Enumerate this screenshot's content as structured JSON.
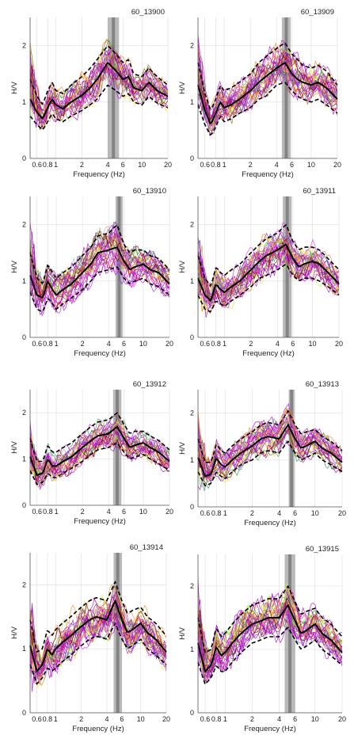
{
  "chart_data": [
    {
      "type": "line",
      "title": "60_13900",
      "xlabel": "Frequency (Hz)",
      "ylabel": "H/V",
      "x_scale": "log",
      "xlim": [
        0.5,
        20
      ],
      "ylim": [
        0,
        2.5
      ],
      "xticks": [
        "0.6",
        "0.8",
        "1",
        "2",
        "4",
        "6",
        "10",
        "20"
      ],
      "xtick_values": [
        0.6,
        0.8,
        1,
        2,
        4,
        6,
        10,
        20
      ],
      "yticks": [
        "0",
        "1",
        "2"
      ],
      "ytick_values": [
        0,
        1,
        2
      ],
      "peak_band_hz": [
        4.0,
        5.4
      ],
      "x": [
        0.5,
        0.6,
        0.7,
        0.8,
        0.9,
        1.0,
        1.2,
        1.5,
        2.0,
        2.5,
        3.0,
        4.0,
        5.0,
        6.0,
        7.0,
        8.0,
        10.0,
        12.0,
        15.0,
        20.0
      ],
      "series": [
        {
          "values": [
            1.05,
            0.82,
            0.7,
            0.9,
            1.05,
            0.95,
            0.88,
            1.0,
            1.12,
            1.25,
            1.4,
            1.7,
            1.55,
            1.4,
            1.45,
            1.25,
            1.2,
            1.35,
            1.2,
            1.1
          ]
        },
        {
          "values": [
            1.4,
            1.1,
            0.95,
            1.2,
            1.35,
            1.2,
            1.15,
            1.3,
            1.45,
            1.6,
            1.75,
            2.0,
            1.85,
            1.7,
            1.75,
            1.5,
            1.45,
            1.6,
            1.45,
            1.3
          ]
        },
        {
          "values": [
            0.75,
            0.6,
            0.5,
            0.65,
            0.8,
            0.7,
            0.65,
            0.75,
            0.85,
            0.95,
            1.05,
            1.3,
            1.2,
            1.1,
            1.15,
            1.0,
            0.95,
            1.1,
            0.98,
            0.9
          ]
        }
      ]
    },
    {
      "type": "line",
      "title": "60_13909",
      "xlabel": "Frequency (Hz)",
      "ylabel": "H/V",
      "x_scale": "log",
      "xlim": [
        0.5,
        20
      ],
      "ylim": [
        0,
        2.5
      ],
      "xticks": [
        "0.6",
        "0.8",
        "1",
        "2",
        "4",
        "6",
        "10",
        "20"
      ],
      "xtick_values": [
        0.6,
        0.8,
        1,
        2,
        4,
        6,
        10,
        20
      ],
      "yticks": [
        "0",
        "1",
        "2"
      ],
      "ytick_values": [
        0,
        1,
        2
      ],
      "peak_band_hz": [
        4.6,
        5.8
      ],
      "x": [
        0.5,
        0.6,
        0.7,
        0.8,
        0.9,
        1.0,
        1.2,
        1.5,
        2.0,
        2.5,
        3.0,
        4.0,
        5.0,
        6.0,
        7.0,
        8.0,
        10.0,
        12.0,
        15.0,
        20.0
      ],
      "series": [
        {
          "values": [
            1.3,
            0.85,
            0.6,
            0.8,
            1.0,
            0.9,
            0.95,
            1.05,
            1.2,
            1.35,
            1.45,
            1.6,
            1.7,
            1.5,
            1.4,
            1.35,
            1.3,
            1.35,
            1.25,
            1.05
          ]
        },
        {
          "values": [
            1.7,
            1.15,
            0.85,
            1.05,
            1.3,
            1.2,
            1.25,
            1.35,
            1.5,
            1.7,
            1.8,
            1.95,
            2.05,
            1.85,
            1.75,
            1.65,
            1.6,
            1.65,
            1.55,
            1.3
          ]
        },
        {
          "values": [
            0.95,
            0.6,
            0.4,
            0.55,
            0.75,
            0.65,
            0.7,
            0.8,
            0.9,
            1.05,
            1.1,
            1.3,
            1.35,
            1.2,
            1.1,
            1.05,
            1.0,
            1.05,
            0.95,
            0.8
          ]
        }
      ]
    },
    {
      "type": "line",
      "title": "60_13910",
      "xlabel": "Frequency (Hz)",
      "ylabel": "H/V",
      "x_scale": "log",
      "xlim": [
        0.5,
        20
      ],
      "ylim": [
        0,
        2.5
      ],
      "xticks": [
        "0.6",
        "0.8",
        "1",
        "2",
        "4",
        "6",
        "10",
        "20"
      ],
      "xtick_values": [
        0.6,
        0.8,
        1,
        2,
        4,
        6,
        10,
        20
      ],
      "yticks": [
        "0",
        "1",
        "2"
      ],
      "ytick_values": [
        0,
        1,
        2
      ],
      "peak_band_hz": [
        4.8,
        5.8
      ],
      "x": [
        0.5,
        0.6,
        0.7,
        0.8,
        0.9,
        1.0,
        1.2,
        1.5,
        2.0,
        2.5,
        3.0,
        4.0,
        5.0,
        6.0,
        7.0,
        8.0,
        10.0,
        12.0,
        15.0,
        20.0
      ],
      "series": [
        {
          "values": [
            1.1,
            0.75,
            0.7,
            1.0,
            0.85,
            0.75,
            0.85,
            0.95,
            1.15,
            1.3,
            1.5,
            1.55,
            1.6,
            1.35,
            1.2,
            1.25,
            1.3,
            1.2,
            1.15,
            0.95
          ]
        },
        {
          "values": [
            1.5,
            1.05,
            0.95,
            1.3,
            1.15,
            1.05,
            1.15,
            1.25,
            1.45,
            1.6,
            1.8,
            1.85,
            2.0,
            1.65,
            1.5,
            1.55,
            1.55,
            1.45,
            1.4,
            1.2
          ]
        },
        {
          "values": [
            0.8,
            0.5,
            0.45,
            0.7,
            0.6,
            0.5,
            0.6,
            0.7,
            0.85,
            1.0,
            1.15,
            1.2,
            1.25,
            1.05,
            0.95,
            1.0,
            1.05,
            0.95,
            0.9,
            0.75
          ]
        }
      ]
    },
    {
      "type": "line",
      "title": "60_13911",
      "xlabel": "Frequency (Hz)",
      "ylabel": "H/V",
      "x_scale": "log",
      "xlim": [
        0.5,
        20
      ],
      "ylim": [
        0,
        2.5
      ],
      "xticks": [
        "0.6",
        "0.8",
        "1",
        "2",
        "4",
        "6",
        "10",
        "20"
      ],
      "xtick_values": [
        0.6,
        0.8,
        1,
        2,
        4,
        6,
        10,
        20
      ],
      "yticks": [
        "0",
        "1",
        "2"
      ],
      "ytick_values": [
        0,
        1,
        2
      ],
      "peak_band_hz": [
        4.6,
        5.8
      ],
      "x": [
        0.5,
        0.6,
        0.7,
        0.8,
        0.9,
        1.0,
        1.2,
        1.5,
        2.0,
        2.5,
        3.0,
        4.0,
        5.0,
        6.0,
        7.0,
        8.0,
        10.0,
        12.0,
        15.0,
        20.0
      ],
      "series": [
        {
          "values": [
            1.05,
            0.75,
            0.65,
            0.95,
            0.85,
            0.8,
            0.9,
            1.0,
            1.2,
            1.35,
            1.45,
            1.55,
            1.65,
            1.4,
            1.25,
            1.3,
            1.35,
            1.3,
            1.15,
            0.95
          ]
        },
        {
          "values": [
            1.45,
            1.05,
            0.9,
            1.25,
            1.15,
            1.1,
            1.2,
            1.3,
            1.5,
            1.65,
            1.75,
            1.85,
            2.0,
            1.7,
            1.55,
            1.6,
            1.6,
            1.55,
            1.4,
            1.2
          ]
        },
        {
          "values": [
            0.75,
            0.5,
            0.45,
            0.65,
            0.6,
            0.55,
            0.65,
            0.75,
            0.9,
            1.05,
            1.1,
            1.2,
            1.3,
            1.1,
            1.0,
            1.05,
            1.05,
            1.0,
            0.9,
            0.75
          ]
        }
      ]
    },
    {
      "type": "line",
      "title": "60_13912",
      "xlabel": "Frequency (Hz)",
      "ylabel": "H/V",
      "x_scale": "log",
      "xlim": [
        0.5,
        20
      ],
      "ylim": [
        0,
        2.5
      ],
      "xticks": [
        "0.6",
        "0.8",
        "1",
        "2",
        "4",
        "6",
        "10",
        "20"
      ],
      "xtick_values": [
        0.6,
        0.8,
        1,
        2,
        4,
        6,
        10,
        20
      ],
      "yticks": [
        "0",
        "1",
        "2"
      ],
      "ytick_values": [
        0,
        1,
        2
      ],
      "peak_band_hz": [
        4.5,
        5.6
      ],
      "x": [
        0.5,
        0.6,
        0.7,
        0.8,
        0.9,
        1.0,
        1.2,
        1.5,
        2.0,
        2.5,
        3.0,
        4.0,
        5.0,
        6.0,
        7.0,
        8.0,
        10.0,
        12.0,
        15.0,
        20.0
      ],
      "series": [
        {
          "values": [
            1.05,
            0.65,
            0.7,
            1.0,
            0.85,
            0.85,
            0.95,
            1.05,
            1.25,
            1.4,
            1.5,
            1.55,
            1.7,
            1.45,
            1.25,
            1.3,
            1.35,
            1.25,
            1.15,
            0.95
          ]
        },
        {
          "values": [
            1.45,
            0.95,
            0.95,
            1.3,
            1.15,
            1.15,
            1.25,
            1.35,
            1.55,
            1.7,
            1.8,
            1.85,
            2.0,
            1.75,
            1.55,
            1.6,
            1.6,
            1.5,
            1.4,
            1.2
          ]
        },
        {
          "values": [
            0.75,
            0.45,
            0.5,
            0.7,
            0.6,
            0.6,
            0.7,
            0.8,
            0.95,
            1.1,
            1.2,
            1.25,
            1.35,
            1.15,
            1.0,
            1.05,
            1.1,
            1.0,
            0.9,
            0.75
          ]
        }
      ]
    },
    {
      "type": "line",
      "title": "60_13913",
      "xlabel": "Frequency (Hz)",
      "ylabel": "H/V",
      "x_scale": "log",
      "xlim": [
        0.5,
        20
      ],
      "ylim": [
        0,
        2.5
      ],
      "xticks": [
        "0.6",
        "0.8",
        "1",
        "2",
        "4",
        "6",
        "10",
        "20"
      ],
      "xtick_values": [
        0.6,
        0.8,
        1,
        2,
        4,
        6,
        10,
        20
      ],
      "yticks": [
        "0",
        "1",
        "2"
      ],
      "ytick_values": [
        0,
        1,
        2
      ],
      "peak_band_hz": [
        5.1,
        5.9
      ],
      "x": [
        0.5,
        0.6,
        0.7,
        0.8,
        0.9,
        1.0,
        1.2,
        1.5,
        2.0,
        2.5,
        3.0,
        4.0,
        5.0,
        6.0,
        7.0,
        8.0,
        10.0,
        12.0,
        15.0,
        20.0
      ],
      "series": [
        {
          "values": [
            1.05,
            0.65,
            0.7,
            1.05,
            0.9,
            0.85,
            1.0,
            1.15,
            1.3,
            1.45,
            1.5,
            1.45,
            1.75,
            1.45,
            1.25,
            1.3,
            1.4,
            1.25,
            1.15,
            0.95
          ]
        },
        {
          "values": [
            1.45,
            0.95,
            0.95,
            1.35,
            1.2,
            1.15,
            1.3,
            1.45,
            1.6,
            1.75,
            1.8,
            1.75,
            2.05,
            1.75,
            1.55,
            1.6,
            1.65,
            1.5,
            1.4,
            1.2
          ]
        },
        {
          "values": [
            0.75,
            0.45,
            0.5,
            0.75,
            0.65,
            0.6,
            0.75,
            0.9,
            1.0,
            1.15,
            1.2,
            1.15,
            1.4,
            1.15,
            1.0,
            1.05,
            1.15,
            1.0,
            0.9,
            0.75
          ]
        }
      ]
    },
    {
      "type": "line",
      "title": "60_13914",
      "xlabel": "Frequency (Hz)",
      "ylabel": "H/V",
      "x_scale": "log",
      "xlim": [
        0.5,
        20
      ],
      "ylim": [
        0,
        2.5
      ],
      "xticks": [
        "0.6",
        "0.8",
        "1",
        "2",
        "4",
        "6",
        "10",
        "20"
      ],
      "xtick_values": [
        0.6,
        0.8,
        1,
        2,
        4,
        6,
        10,
        20
      ],
      "yticks": [
        "0",
        "1",
        "2"
      ],
      "ytick_values": [
        0,
        1,
        2
      ],
      "peak_band_hz": [
        4.8,
        6.0
      ],
      "x": [
        0.5,
        0.6,
        0.7,
        0.8,
        0.9,
        1.0,
        1.2,
        1.5,
        2.0,
        2.5,
        3.0,
        4.0,
        5.0,
        6.0,
        7.0,
        8.0,
        10.0,
        12.0,
        15.0,
        20.0
      ],
      "series": [
        {
          "values": [
            1.05,
            0.65,
            0.75,
            1.0,
            0.9,
            1.0,
            1.1,
            1.2,
            1.35,
            1.45,
            1.5,
            1.45,
            1.75,
            1.45,
            1.25,
            1.3,
            1.4,
            1.25,
            1.15,
            0.95
          ]
        },
        {
          "values": [
            1.45,
            0.95,
            1.0,
            1.3,
            1.2,
            1.3,
            1.4,
            1.5,
            1.65,
            1.75,
            1.8,
            1.75,
            2.05,
            1.75,
            1.55,
            1.6,
            1.65,
            1.5,
            1.4,
            1.2
          ]
        },
        {
          "values": [
            0.75,
            0.45,
            0.55,
            0.7,
            0.65,
            0.7,
            0.8,
            0.9,
            1.05,
            1.15,
            1.2,
            1.15,
            1.4,
            1.15,
            1.0,
            1.05,
            1.15,
            1.0,
            0.9,
            0.75
          ]
        }
      ]
    },
    {
      "type": "line",
      "title": "60_13915",
      "xlabel": "Frequency (Hz)",
      "ylabel": "H/V",
      "x_scale": "log",
      "xlim": [
        0.5,
        20
      ],
      "ylim": [
        0,
        2.5
      ],
      "xticks": [
        "0.6",
        "0.8",
        "1",
        "2",
        "4",
        "6",
        "10",
        "20"
      ],
      "xtick_values": [
        0.6,
        0.8,
        1,
        2,
        4,
        6,
        10,
        20
      ],
      "yticks": [
        "0",
        "1",
        "2"
      ],
      "ytick_values": [
        0,
        1,
        2
      ],
      "peak_band_hz": [
        4.6,
        6.0
      ],
      "x": [
        0.5,
        0.6,
        0.7,
        0.8,
        0.9,
        1.0,
        1.2,
        1.5,
        2.0,
        2.5,
        3.0,
        4.0,
        5.0,
        6.0,
        7.0,
        8.0,
        10.0,
        12.0,
        15.0,
        20.0
      ],
      "series": [
        {
          "values": [
            1.1,
            0.65,
            0.75,
            1.05,
            0.9,
            0.95,
            1.1,
            1.25,
            1.4,
            1.45,
            1.5,
            1.5,
            1.7,
            1.45,
            1.25,
            1.3,
            1.4,
            1.25,
            1.15,
            0.95
          ]
        },
        {
          "values": [
            1.5,
            0.95,
            1.0,
            1.35,
            1.2,
            1.25,
            1.4,
            1.55,
            1.7,
            1.75,
            1.8,
            1.8,
            2.0,
            1.75,
            1.55,
            1.6,
            1.65,
            1.5,
            1.4,
            1.2
          ]
        },
        {
          "values": [
            0.8,
            0.45,
            0.55,
            0.75,
            0.65,
            0.65,
            0.8,
            0.95,
            1.1,
            1.15,
            1.2,
            1.2,
            1.35,
            1.15,
            1.0,
            1.05,
            1.15,
            1.0,
            0.9,
            0.75
          ]
        }
      ]
    }
  ],
  "style": {
    "mean_color": "#000000",
    "band_color": "#808080",
    "axis_color": "#555555",
    "grid_color": "#dddddd",
    "trace_colors": [
      "#e6194b",
      "#3cb44b",
      "#ffe119",
      "#4363d8",
      "#f58231",
      "#911eb4",
      "#42d4f4",
      "#f032e6",
      "#bfef45",
      "#469990",
      "#9a6324",
      "#800000",
      "#000075",
      "#a9a9a9",
      "#ff6f00",
      "#00a0b0",
      "#7b2ff7",
      "#2e8b57"
    ],
    "purple_color": "#b000c8"
  }
}
